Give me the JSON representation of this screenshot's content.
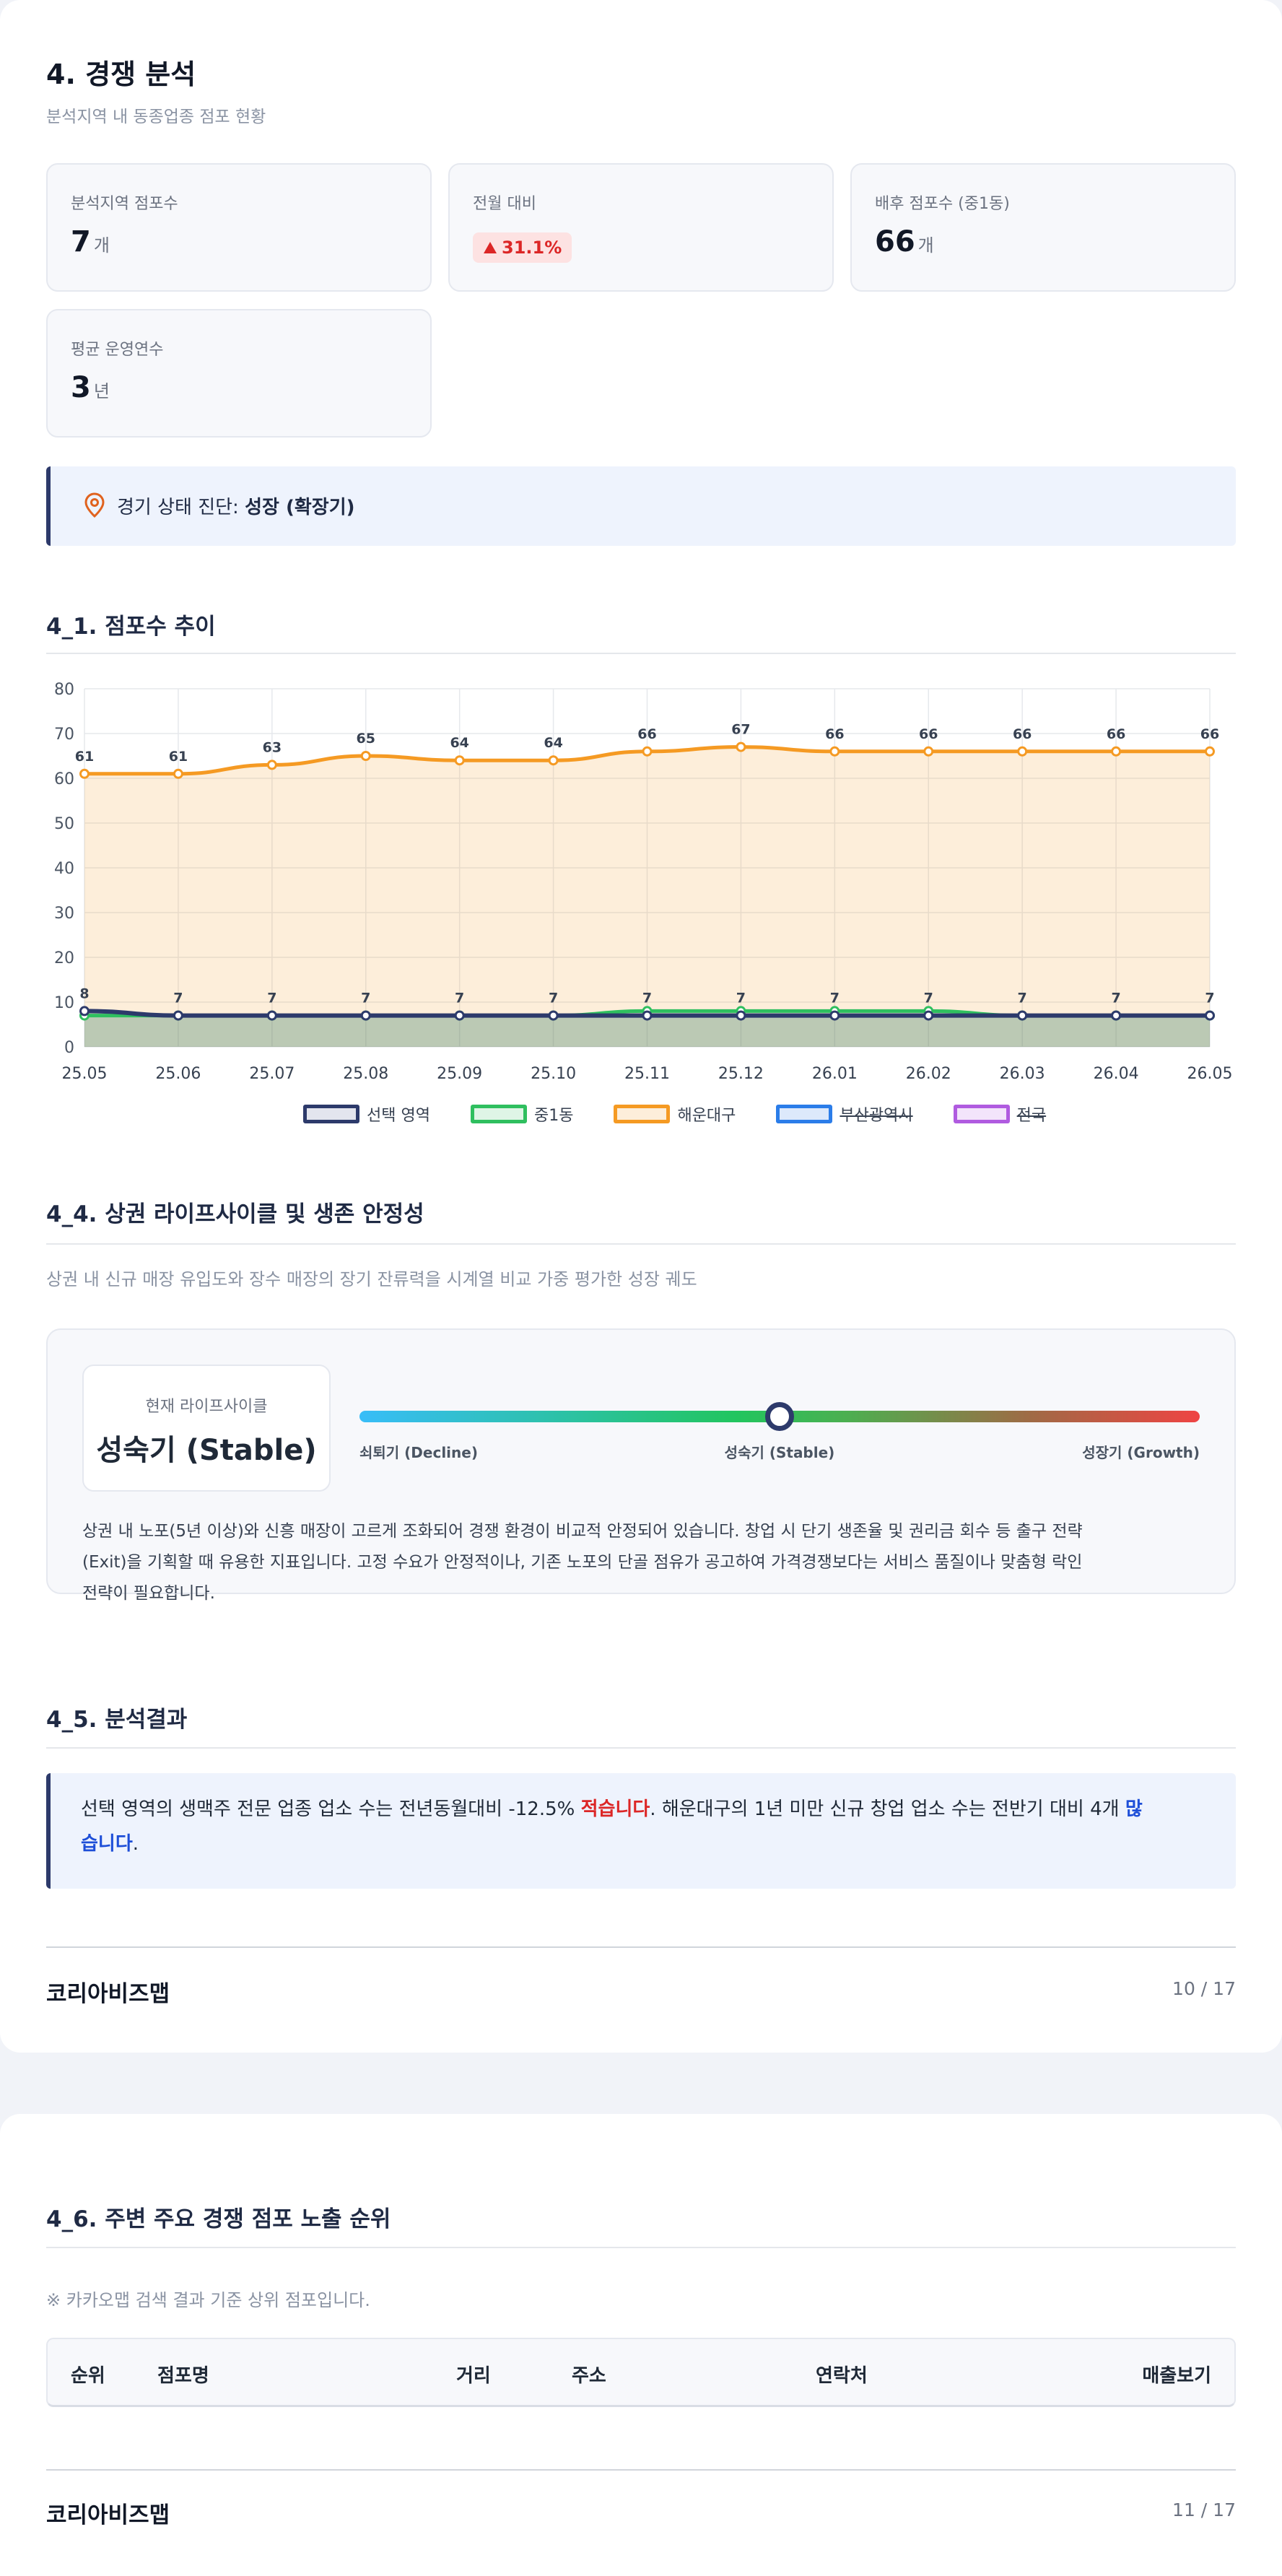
{
  "section4": {
    "title": "4. 경쟁 분석",
    "subtitle": "분석지역 내 동종업종 점포 현황",
    "metrics": {
      "store_count": {
        "label": "분석지역 점포수",
        "value": "7",
        "unit": "개"
      },
      "mom": {
        "label": "전월 대비",
        "value": "31.1%"
      },
      "hinterland": {
        "label": "배후 점포수 (중1동)",
        "value": "66",
        "unit": "개"
      },
      "avg_years": {
        "label": "평균 운영연수",
        "value": "3",
        "unit": "년"
      }
    },
    "diagnosis": {
      "prefix": "경기 상태 진단: ",
      "value": "성장 (확장기)"
    }
  },
  "trend": {
    "title": "4_1. 점포수 추이",
    "legend": [
      "선택 영역",
      "중1동",
      "해운대구",
      "부산광역시",
      "전국"
    ]
  },
  "chart_data": {
    "type": "line",
    "x": [
      "25.05",
      "25.06",
      "25.07",
      "25.08",
      "25.09",
      "25.10",
      "25.11",
      "25.12",
      "26.01",
      "26.02",
      "26.03",
      "26.04",
      "26.05"
    ],
    "ylim": [
      0,
      80
    ],
    "yticks": [
      0,
      10,
      20,
      30,
      40,
      50,
      60,
      70,
      80
    ],
    "grid": true,
    "legend_position": "bottom",
    "series": [
      {
        "name": "선택 영역",
        "color": "#2d3a6b",
        "values": [
          8,
          7,
          7,
          7,
          7,
          7,
          7,
          7,
          7,
          7,
          7,
          7,
          7
        ],
        "labels": true,
        "visible": true
      },
      {
        "name": "중1동",
        "color": "#2fbf5f",
        "values": [
          7,
          7,
          7,
          7,
          7,
          7,
          8,
          8,
          8,
          8,
          7,
          7,
          7
        ],
        "labels": false,
        "visible": true
      },
      {
        "name": "해운대구",
        "color": "#f59a23",
        "values": [
          61,
          61,
          63,
          65,
          64,
          64,
          66,
          67,
          66,
          66,
          66,
          66,
          66
        ],
        "labels": true,
        "visible": true
      },
      {
        "name": "부산광역시",
        "color": "#2b7de9",
        "visible": false
      },
      {
        "name": "전국",
        "color": "#b05be0",
        "visible": false
      }
    ]
  },
  "lifecycle": {
    "title": "4_4. 상권 라이프사이클 및 생존 안정성",
    "subtitle": "상권 내 신규 매장 유입도와 장수 매장의 장기 잔류력을 시계열 비교 가중 평가한 성장 궤도",
    "current_label": "현재 라이프사이클",
    "current_value": "성숙기 (Stable)",
    "gauge_position": 0.5,
    "scale": [
      "쇠퇴기 (Decline)",
      "성숙기 (Stable)",
      "성장기 (Growth)"
    ],
    "description_line1": "상권 내 노포(5년 이상)와 신흥 매장이 고르게 조화되어 경쟁 환경이 비교적 안정되어 있습니다. 창업 시 단기 생존율 및 권리금 회수 등 출구 전략",
    "description_line2": "(Exit)을 기획할 때 유용한 지표입니다. 고정 수요가 안정적이나, 기존 노포의 단골 점유가 공고하여 가격경쟁보다는 서비스 품질이나 맞춤형 락인",
    "description_line3": "전략이 필요합니다."
  },
  "result": {
    "title": "4_5. 분석결과",
    "part1": "선택 영역의 생맥주 전문 업종 업소 수는 전년동월대비 -12.5% ",
    "emph1": "적습니다",
    "part2": ". 해운대구의 1년 미만 신규 창업 업소 수는 전반기 대비 4개 ",
    "emph2a": "많",
    "emph2b": "습니다",
    "part3": "."
  },
  "footer1": {
    "brand": "코리아비즈맵",
    "page": "10 / 17"
  },
  "ranking": {
    "title": "4_6. 주변 주요 경쟁 점포 노출 순위",
    "note": "※ 카카오맵 검색 결과 기준 상위 점포입니다.",
    "columns": [
      "순위",
      "점포명",
      "거리",
      "주소",
      "연락처",
      "매출보기"
    ]
  },
  "footer2": {
    "brand": "코리아비즈맵",
    "page": "11 / 17"
  }
}
